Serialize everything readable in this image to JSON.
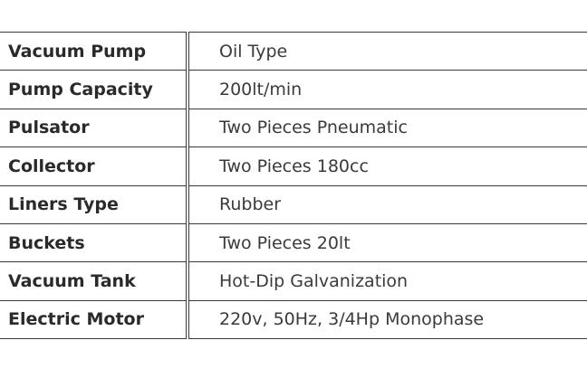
{
  "specs": {
    "rows": [
      {
        "label": "Vacuum Pump",
        "value": "Oil Type"
      },
      {
        "label": "Pump Capacity",
        "value": "200lt/min"
      },
      {
        "label": "Pulsator",
        "value": "Two Pieces Pneumatic"
      },
      {
        "label": "Collector",
        "value": "Two Pieces 180cc"
      },
      {
        "label": "Liners Type",
        "value": "Rubber"
      },
      {
        "label": "Buckets",
        "value": "Two Pieces 20lt"
      },
      {
        "label": "Vacuum Tank",
        "value": "Hot-Dip Galvanization"
      },
      {
        "label": "Electric Motor",
        "value": "220v, 50Hz, 3/4Hp Monophase"
      }
    ]
  }
}
